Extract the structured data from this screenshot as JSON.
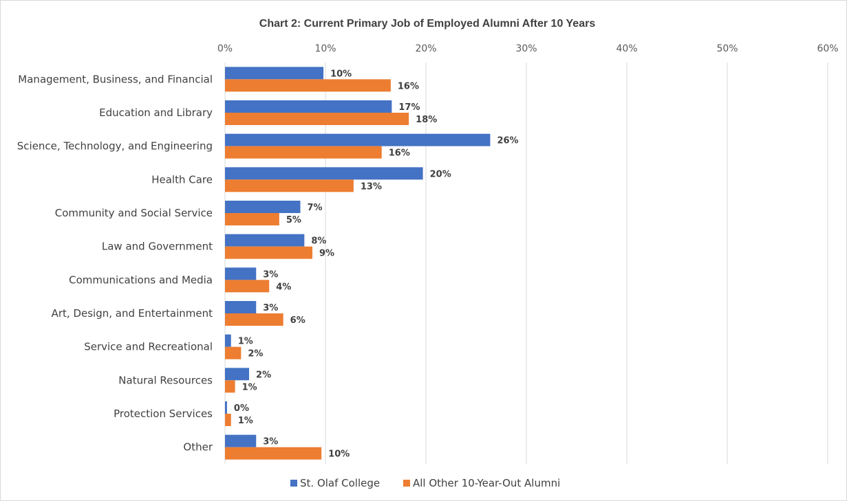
{
  "chart_data": {
    "type": "bar",
    "orientation": "horizontal",
    "title": "Chart 2: Current Primary Job of Employed Alumni After 10 Years",
    "xlim": [
      0,
      60
    ],
    "x_ticks": [
      "0%",
      "10%",
      "20%",
      "30%",
      "40%",
      "50%",
      "60%"
    ],
    "x_tick_values": [
      0,
      10,
      20,
      30,
      40,
      50,
      60
    ],
    "gridlines": true,
    "legend_position": "bottom",
    "categories": [
      "Management, Business, and Financial",
      "Education and Library",
      "Science, Technology, and Engineering",
      "Health Care",
      "Community and Social Service",
      "Law and Government",
      "Communications and Media",
      "Art, Design, and Entertainment",
      "Service and Recreational",
      "Natural Resources",
      "Protection Services",
      "Other"
    ],
    "series": [
      {
        "name": "St. Olaf College",
        "color": "#4472C4",
        "values": [
          9.8,
          16.6,
          26.4,
          19.7,
          7.5,
          7.9,
          3.1,
          3.1,
          0.6,
          2.4,
          0.2,
          3.1
        ],
        "labels": [
          "10%",
          "17%",
          "26%",
          "20%",
          "7%",
          "8%",
          "3%",
          "3%",
          "1%",
          "2%",
          "0%",
          "3%"
        ]
      },
      {
        "name": "All Other 10-Year-Out Alumni",
        "color": "#ED7D31",
        "values": [
          16.5,
          18.3,
          15.6,
          12.8,
          5.4,
          8.7,
          4.4,
          5.8,
          1.6,
          1.0,
          0.6,
          9.6
        ],
        "labels": [
          "16%",
          "18%",
          "16%",
          "13%",
          "5%",
          "9%",
          "4%",
          "6%",
          "2%",
          "1%",
          "1%",
          "10%"
        ]
      }
    ]
  }
}
